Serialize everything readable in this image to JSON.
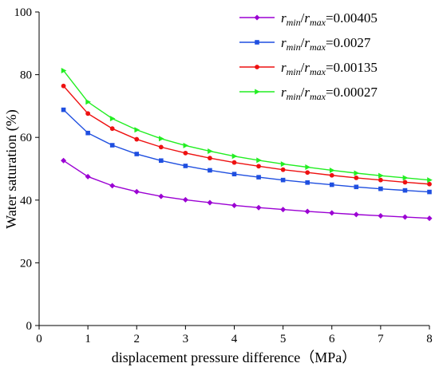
{
  "chart_data": {
    "type": "line",
    "xlabel": "displacement pressure difference（MPa）",
    "ylabel": "Water saturation (%)",
    "xlim": [
      0,
      8
    ],
    "ylim": [
      0,
      100
    ],
    "xticks": [
      0,
      1,
      2,
      3,
      4,
      5,
      6,
      7,
      8
    ],
    "yticks": [
      0,
      20,
      40,
      60,
      80,
      100
    ],
    "grid": false,
    "legend_position": "top-right",
    "x": [
      0.5,
      1.0,
      1.5,
      2.0,
      2.5,
      3.0,
      3.5,
      4.0,
      4.5,
      5.0,
      5.5,
      6.0,
      6.5,
      7.0,
      7.5,
      8.0
    ],
    "series": [
      {
        "legend": {
          "r1": "r",
          "s1": "min",
          "slash": "/",
          "r2": "r",
          "s2": "max",
          "value": "=0.00405"
        },
        "color": "#9b00d3",
        "marker": "diamond",
        "values": [
          52.6,
          47.5,
          44.6,
          42.7,
          41.2,
          40.1,
          39.2,
          38.3,
          37.6,
          37.0,
          36.4,
          35.9,
          35.4,
          35.0,
          34.6,
          34.2
        ]
      },
      {
        "legend": {
          "r1": "r",
          "s1": "min",
          "slash": "/",
          "r2": "r",
          "s2": "max",
          "value": "=0.0027"
        },
        "color": "#1f4fe0",
        "marker": "square",
        "values": [
          68.8,
          61.4,
          57.5,
          54.7,
          52.6,
          50.9,
          49.5,
          48.3,
          47.3,
          46.4,
          45.6,
          44.9,
          44.2,
          43.6,
          43.1,
          42.6
        ]
      },
      {
        "legend": {
          "r1": "r",
          "s1": "min",
          "slash": "/",
          "r2": "r",
          "s2": "max",
          "value": "=0.00135"
        },
        "color": "#ee1111",
        "marker": "circle",
        "values": [
          76.4,
          67.6,
          62.8,
          59.4,
          56.9,
          55.0,
          53.4,
          52.0,
          50.8,
          49.7,
          48.8,
          47.9,
          47.1,
          46.4,
          45.7,
          45.1
        ]
      },
      {
        "legend": {
          "r1": "r",
          "s1": "min",
          "slash": "/",
          "r2": "r",
          "s2": "max",
          "value": "=0.00027"
        },
        "color": "#22ee22",
        "marker": "triangle-right",
        "values": [
          81.3,
          71.3,
          66.0,
          62.4,
          59.6,
          57.4,
          55.6,
          54.0,
          52.7,
          51.5,
          50.5,
          49.5,
          48.6,
          47.8,
          47.1,
          46.4
        ]
      }
    ]
  }
}
